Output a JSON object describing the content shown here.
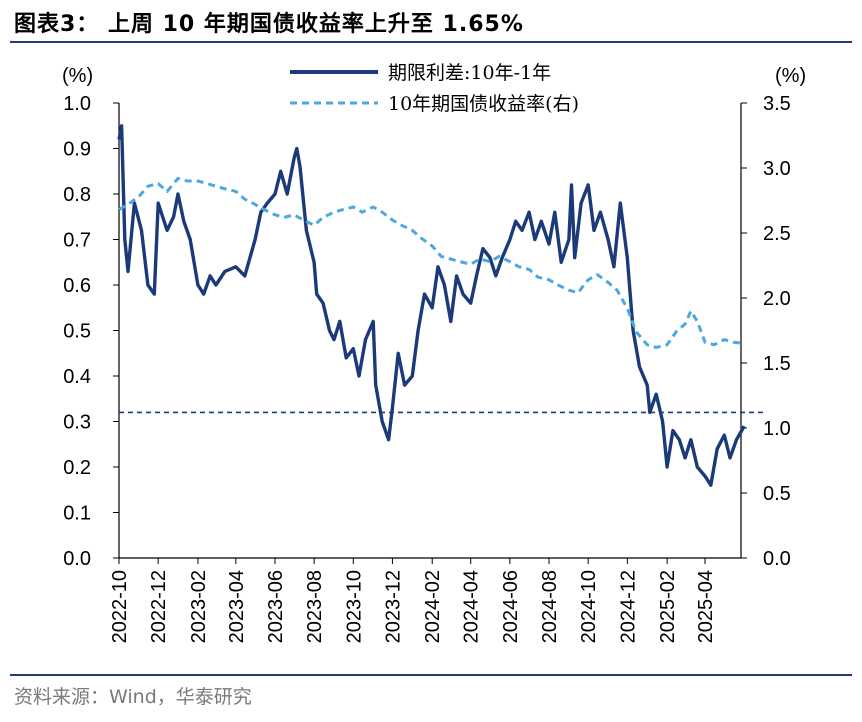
{
  "header": {
    "title": "图表3： 上周 10 年期国债收益率上升至 1.65%"
  },
  "footer": {
    "source": "资料来源：Wind，华泰研究"
  },
  "colors": {
    "spread": "#1b3a7a",
    "yield": "#4ea8e0",
    "ref_line": "#1b3a7a",
    "rule": "#1f3f7a"
  },
  "chart_data": {
    "type": "line",
    "left_unit": "(%)",
    "right_unit": "(%)",
    "left_ylim": [
      0.0,
      1.0
    ],
    "right_ylim": [
      0.0,
      3.5
    ],
    "left_ticks": [
      "0.0",
      "0.1",
      "0.2",
      "0.3",
      "0.4",
      "0.5",
      "0.6",
      "0.7",
      "0.8",
      "0.9",
      "1.0"
    ],
    "right_ticks": [
      "0.0",
      "0.5",
      "1.0",
      "1.5",
      "2.0",
      "2.5",
      "3.0",
      "3.5"
    ],
    "x_ticks": [
      "2022-10",
      "2022-12",
      "2023-02",
      "2023-04",
      "2023-06",
      "2023-08",
      "2023-10",
      "2023-12",
      "2024-02",
      "2024-04",
      "2024-06",
      "2024-08",
      "2024-10",
      "2024-12",
      "2025-02",
      "2025-04"
    ],
    "reference_line": {
      "axis": "left",
      "value": 0.32
    },
    "series": [
      {
        "name": "期限利差:10年-1年",
        "axis": "left",
        "style": "solid",
        "points": [
          [
            "2022-10",
            0.92
          ],
          [
            "2022-10-05",
            0.95
          ],
          [
            "2022-10-10",
            0.7
          ],
          [
            "2022-10-15",
            0.63
          ],
          [
            "2022-10-25",
            0.78
          ],
          [
            "2022-11-05",
            0.72
          ],
          [
            "2022-11-15",
            0.6
          ],
          [
            "2022-11-25",
            0.58
          ],
          [
            "2022-12",
            0.78
          ],
          [
            "2022-12-15",
            0.72
          ],
          [
            "2022-12-25",
            0.75
          ],
          [
            "2023-01",
            0.8
          ],
          [
            "2023-01-10",
            0.74
          ],
          [
            "2023-01-20",
            0.7
          ],
          [
            "2023-02",
            0.6
          ],
          [
            "2023-02-10",
            0.58
          ],
          [
            "2023-02-20",
            0.62
          ],
          [
            "2023-03",
            0.6
          ],
          [
            "2023-03-15",
            0.63
          ],
          [
            "2023-04",
            0.64
          ],
          [
            "2023-04-15",
            0.62
          ],
          [
            "2023-05",
            0.7
          ],
          [
            "2023-05-10",
            0.76
          ],
          [
            "2023-05-20",
            0.78
          ],
          [
            "2023-06",
            0.8
          ],
          [
            "2023-06-10",
            0.85
          ],
          [
            "2023-06-20",
            0.8
          ],
          [
            "2023-07",
            0.88
          ],
          [
            "2023-07-05",
            0.9
          ],
          [
            "2023-07-10",
            0.86
          ],
          [
            "2023-07-20",
            0.72
          ],
          [
            "2023-08",
            0.65
          ],
          [
            "2023-08-05",
            0.58
          ],
          [
            "2023-08-15",
            0.56
          ],
          [
            "2023-08-25",
            0.5
          ],
          [
            "2023-09",
            0.48
          ],
          [
            "2023-09-10",
            0.52
          ],
          [
            "2023-09-20",
            0.44
          ],
          [
            "2023-10",
            0.46
          ],
          [
            "2023-10-10",
            0.4
          ],
          [
            "2023-10-20",
            0.48
          ],
          [
            "2023-11",
            0.52
          ],
          [
            "2023-11-05",
            0.38
          ],
          [
            "2023-11-15",
            0.3
          ],
          [
            "2023-11-25",
            0.26
          ],
          [
            "2023-12",
            0.33
          ],
          [
            "2023-12-10",
            0.45
          ],
          [
            "2023-12-20",
            0.38
          ],
          [
            "2024-01",
            0.4
          ],
          [
            "2024-01-10",
            0.5
          ],
          [
            "2024-01-20",
            0.58
          ],
          [
            "2024-02",
            0.55
          ],
          [
            "2024-02-10",
            0.64
          ],
          [
            "2024-02-20",
            0.6
          ],
          [
            "2024-03",
            0.52
          ],
          [
            "2024-03-10",
            0.62
          ],
          [
            "2024-03-20",
            0.58
          ],
          [
            "2024-04",
            0.56
          ],
          [
            "2024-04-10",
            0.62
          ],
          [
            "2024-04-20",
            0.68
          ],
          [
            "2024-05",
            0.66
          ],
          [
            "2024-05-10",
            0.62
          ],
          [
            "2024-05-20",
            0.66
          ],
          [
            "2024-06",
            0.7
          ],
          [
            "2024-06-10",
            0.74
          ],
          [
            "2024-06-20",
            0.72
          ],
          [
            "2024-07",
            0.76
          ],
          [
            "2024-07-10",
            0.7
          ],
          [
            "2024-07-20",
            0.74
          ],
          [
            "2024-08",
            0.69
          ],
          [
            "2024-08-10",
            0.76
          ],
          [
            "2024-08-20",
            0.65
          ],
          [
            "2024-09",
            0.7
          ],
          [
            "2024-09-05",
            0.82
          ],
          [
            "2024-09-10",
            0.66
          ],
          [
            "2024-09-20",
            0.78
          ],
          [
            "2024-10",
            0.82
          ],
          [
            "2024-10-10",
            0.72
          ],
          [
            "2024-10-20",
            0.76
          ],
          [
            "2024-11",
            0.7
          ],
          [
            "2024-11-10",
            0.64
          ],
          [
            "2024-11-20",
            0.78
          ],
          [
            "2024-12",
            0.66
          ],
          [
            "2024-12-10",
            0.5
          ],
          [
            "2024-12-20",
            0.42
          ],
          [
            "2025-01",
            0.38
          ],
          [
            "2025-01-05",
            0.32
          ],
          [
            "2025-01-15",
            0.36
          ],
          [
            "2025-01-25",
            0.3
          ],
          [
            "2025-02",
            0.2
          ],
          [
            "2025-02-10",
            0.28
          ],
          [
            "2025-02-20",
            0.26
          ],
          [
            "2025-03",
            0.22
          ],
          [
            "2025-03-10",
            0.26
          ],
          [
            "2025-03-20",
            0.2
          ],
          [
            "2025-04",
            0.18
          ],
          [
            "2025-04-10",
            0.16
          ],
          [
            "2025-04-20",
            0.24
          ],
          [
            "2025-05",
            0.27
          ],
          [
            "2025-05-10",
            0.22
          ],
          [
            "2025-05-20",
            0.26
          ],
          [
            "2025-06",
            0.29
          ]
        ]
      },
      {
        "name": "10年期国债收益率(右)",
        "axis": "right",
        "style": "dashed",
        "points": [
          [
            "2022-10",
            2.68
          ],
          [
            "2022-10-15",
            2.72
          ],
          [
            "2022-11",
            2.78
          ],
          [
            "2022-11-15",
            2.86
          ],
          [
            "2022-12",
            2.88
          ],
          [
            "2022-12-15",
            2.82
          ],
          [
            "2023-01",
            2.92
          ],
          [
            "2023-01-15",
            2.9
          ],
          [
            "2023-02",
            2.9
          ],
          [
            "2023-02-15",
            2.88
          ],
          [
            "2023-03",
            2.86
          ],
          [
            "2023-03-15",
            2.84
          ],
          [
            "2023-04",
            2.82
          ],
          [
            "2023-04-15",
            2.76
          ],
          [
            "2023-05",
            2.72
          ],
          [
            "2023-05-15",
            2.68
          ],
          [
            "2023-06",
            2.64
          ],
          [
            "2023-06-15",
            2.62
          ],
          [
            "2023-07",
            2.64
          ],
          [
            "2023-07-15",
            2.6
          ],
          [
            "2023-08",
            2.56
          ],
          [
            "2023-08-15",
            2.62
          ],
          [
            "2023-09",
            2.66
          ],
          [
            "2023-09-15",
            2.68
          ],
          [
            "2023-10",
            2.7
          ],
          [
            "2023-10-15",
            2.66
          ],
          [
            "2023-11",
            2.7
          ],
          [
            "2023-11-15",
            2.66
          ],
          [
            "2023-12",
            2.6
          ],
          [
            "2023-12-15",
            2.56
          ],
          [
            "2024-01",
            2.52
          ],
          [
            "2024-01-15",
            2.46
          ],
          [
            "2024-02",
            2.4
          ],
          [
            "2024-02-15",
            2.32
          ],
          [
            "2024-03",
            2.3
          ],
          [
            "2024-03-15",
            2.28
          ],
          [
            "2024-04",
            2.26
          ],
          [
            "2024-04-15",
            2.3
          ],
          [
            "2024-05",
            2.28
          ],
          [
            "2024-05-15",
            2.32
          ],
          [
            "2024-06",
            2.28
          ],
          [
            "2024-06-15",
            2.24
          ],
          [
            "2024-07",
            2.22
          ],
          [
            "2024-07-15",
            2.16
          ],
          [
            "2024-08",
            2.14
          ],
          [
            "2024-08-15",
            2.1
          ],
          [
            "2024-09",
            2.06
          ],
          [
            "2024-09-15",
            2.04
          ],
          [
            "2024-10",
            2.14
          ],
          [
            "2024-10-15",
            2.18
          ],
          [
            "2024-11",
            2.12
          ],
          [
            "2024-11-15",
            2.06
          ],
          [
            "2024-12",
            1.92
          ],
          [
            "2024-12-15",
            1.74
          ],
          [
            "2025-01",
            1.64
          ],
          [
            "2025-01-15",
            1.62
          ],
          [
            "2025-02",
            1.64
          ],
          [
            "2025-02-15",
            1.74
          ],
          [
            "2025-03",
            1.8
          ],
          [
            "2025-03-10",
            1.9
          ],
          [
            "2025-03-20",
            1.82
          ],
          [
            "2025-04",
            1.66
          ],
          [
            "2025-04-15",
            1.64
          ],
          [
            "2025-05",
            1.68
          ],
          [
            "2025-05-15",
            1.66
          ],
          [
            "2025-06",
            1.65
          ]
        ]
      }
    ]
  }
}
